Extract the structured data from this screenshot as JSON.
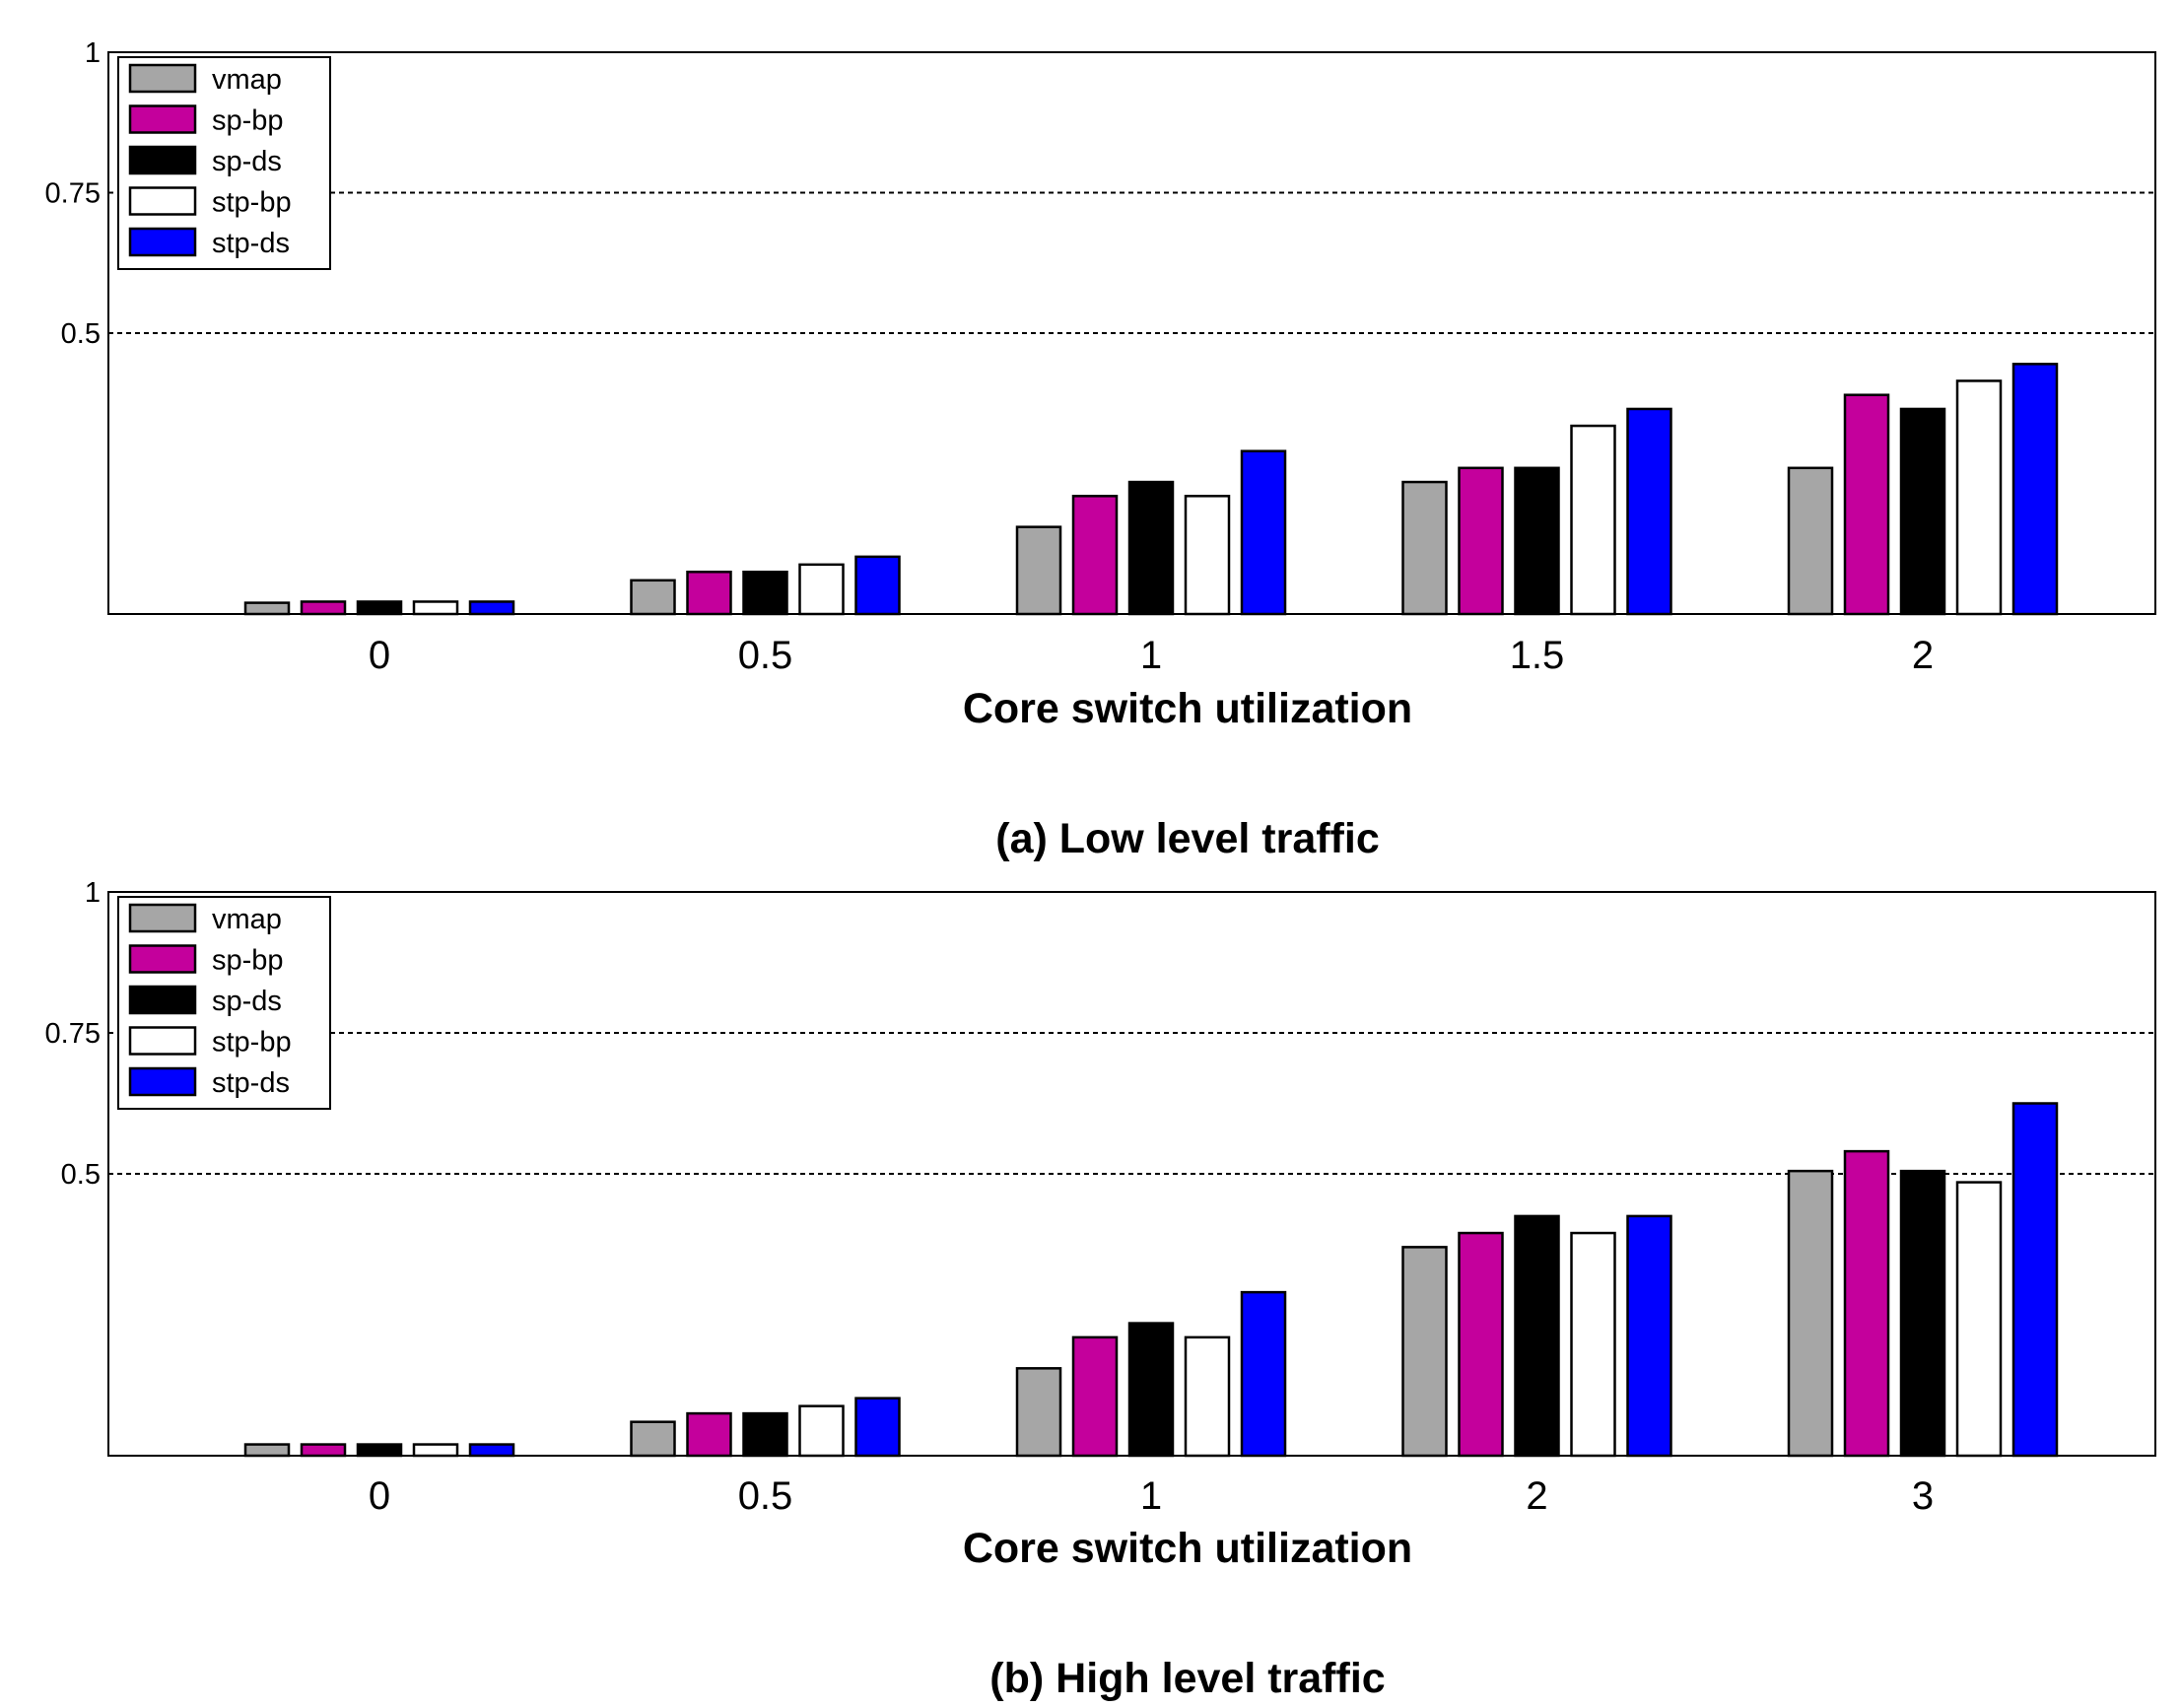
{
  "chart_data": [
    {
      "type": "bar",
      "caption": "(a) Low level traffic",
      "xlabel": "Core switch utilization",
      "ylabel": "",
      "categories": [
        "0",
        "0.5",
        "1",
        "1.5",
        "2"
      ],
      "ylim": [
        0,
        1
      ],
      "yticks": [
        "1",
        "0.75",
        "0.5"
      ],
      "ytick_values": [
        1,
        0.75,
        0.5
      ],
      "gridlines": [
        0.75,
        0.5
      ],
      "legend_position": "top-left",
      "series": [
        {
          "name": "vmap",
          "color": "#a6a6a6",
          "values": [
            0.02,
            0.06,
            0.155,
            0.235,
            0.26
          ]
        },
        {
          "name": "sp-bp",
          "color": "#c4009c",
          "values": [
            0.022,
            0.075,
            0.21,
            0.26,
            0.39
          ]
        },
        {
          "name": "sp-ds",
          "color": "#000000",
          "values": [
            0.022,
            0.075,
            0.235,
            0.26,
            0.365
          ]
        },
        {
          "name": "stp-bp",
          "color": "#ffffff",
          "values": [
            0.022,
            0.088,
            0.21,
            0.335,
            0.415
          ]
        },
        {
          "name": "stp-ds",
          "color": "#0000ff",
          "values": [
            0.022,
            0.102,
            0.29,
            0.365,
            0.445
          ]
        }
      ]
    },
    {
      "type": "bar",
      "caption": "(b) High level traffic",
      "xlabel": "Core switch utilization",
      "ylabel": "",
      "categories": [
        "0",
        "0.5",
        "1",
        "2",
        "3"
      ],
      "ylim": [
        0,
        1
      ],
      "yticks": [
        "1",
        "0.75",
        "0.5"
      ],
      "ytick_values": [
        1,
        0.75,
        0.5
      ],
      "gridlines": [
        0.75,
        0.5
      ],
      "legend_position": "top-left",
      "series": [
        {
          "name": "vmap",
          "color": "#a6a6a6",
          "values": [
            0.02,
            0.06,
            0.155,
            0.37,
            0.505
          ]
        },
        {
          "name": "sp-bp",
          "color": "#c4009c",
          "values": [
            0.02,
            0.075,
            0.21,
            0.395,
            0.54
          ]
        },
        {
          "name": "sp-ds",
          "color": "#000000",
          "values": [
            0.02,
            0.075,
            0.235,
            0.425,
            0.505
          ]
        },
        {
          "name": "stp-bp",
          "color": "#ffffff",
          "values": [
            0.02,
            0.088,
            0.21,
            0.395,
            0.485
          ]
        },
        {
          "name": "stp-ds",
          "color": "#0000ff",
          "values": [
            0.02,
            0.102,
            0.29,
            0.425,
            0.625
          ]
        }
      ]
    }
  ]
}
